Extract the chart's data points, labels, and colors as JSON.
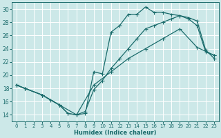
{
  "xlabel": "Humidex (Indice chaleur)",
  "bg_color": "#cce8e8",
  "grid_color": "#ffffff",
  "line_color": "#1a6b6b",
  "xlim": [
    -0.5,
    23.5
  ],
  "ylim": [
    13.0,
    31.0
  ],
  "xticks": [
    0,
    1,
    2,
    3,
    4,
    5,
    6,
    7,
    8,
    9,
    10,
    11,
    12,
    13,
    14,
    15,
    16,
    17,
    18,
    19,
    20,
    21,
    22,
    23
  ],
  "yticks": [
    14,
    16,
    18,
    20,
    22,
    24,
    26,
    28,
    30
  ],
  "line1_x": [
    0,
    1,
    3,
    4,
    5,
    6,
    7,
    8,
    9,
    10,
    11,
    12,
    13,
    14,
    15,
    16,
    17,
    18,
    19,
    20,
    21,
    22,
    23
  ],
  "line1_y": [
    18.5,
    18.0,
    17.0,
    16.2,
    15.5,
    14.2,
    14.0,
    14.2,
    20.5,
    20.2,
    26.5,
    27.5,
    29.2,
    29.2,
    30.3,
    29.5,
    29.5,
    29.2,
    29.0,
    28.7,
    28.2,
    23.8,
    22.5
  ],
  "line2_x": [
    0,
    1,
    3,
    5,
    6,
    7,
    8,
    9,
    10,
    11,
    12,
    13,
    14,
    15,
    16,
    17,
    18,
    19,
    20,
    21,
    22,
    23
  ],
  "line2_y": [
    18.5,
    18.0,
    17.0,
    15.5,
    14.2,
    14.0,
    14.5,
    17.8,
    19.2,
    21.0,
    22.5,
    24.0,
    25.5,
    27.0,
    27.5,
    28.0,
    28.5,
    29.0,
    28.5,
    27.5,
    23.5,
    23.0
  ],
  "line3_x": [
    0,
    1,
    3,
    5,
    7,
    9,
    11,
    13,
    15,
    17,
    19,
    21,
    23
  ],
  "line3_y": [
    18.5,
    18.0,
    17.0,
    15.5,
    14.0,
    18.5,
    20.5,
    22.5,
    24.0,
    25.5,
    27.0,
    24.2,
    23.0
  ]
}
